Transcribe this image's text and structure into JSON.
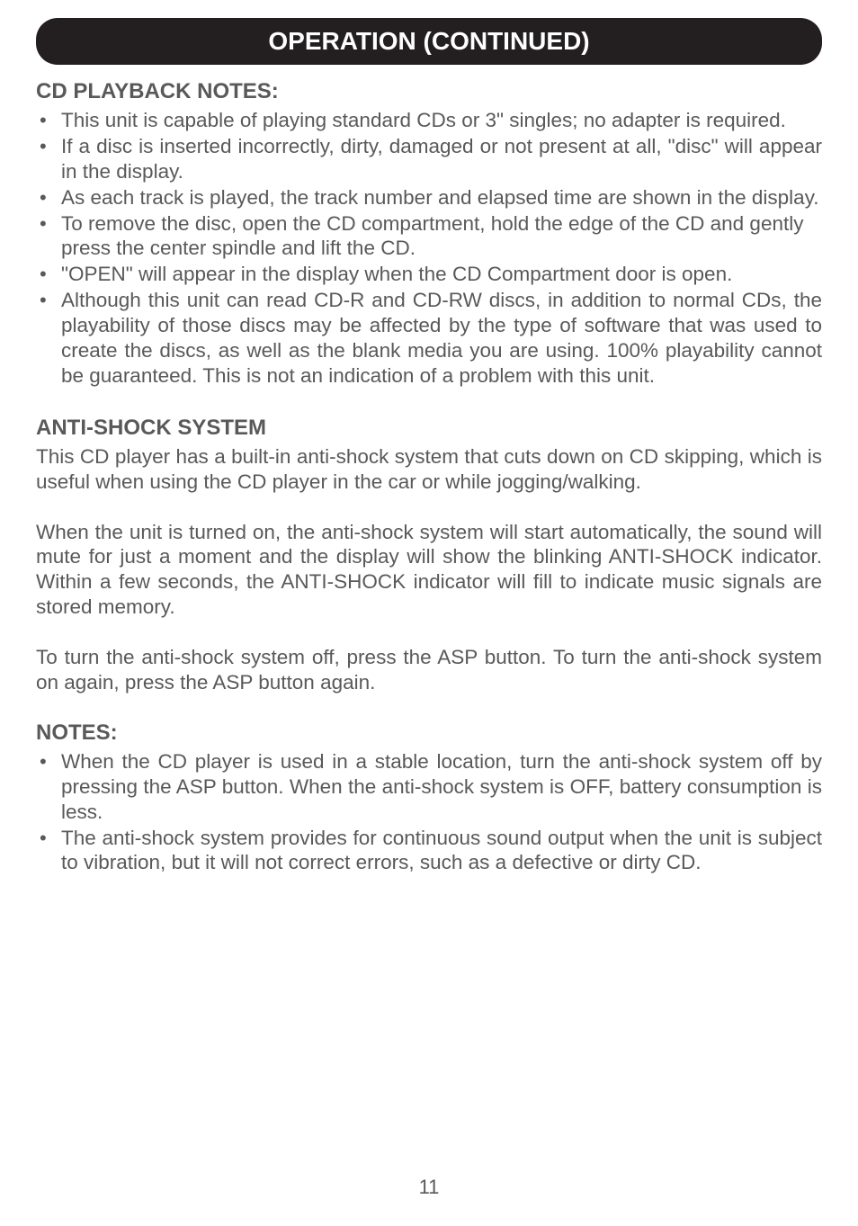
{
  "header": {
    "title": "OPERATION (CONTINUED)"
  },
  "section1": {
    "heading": "CD PLAYBACK NOTES:",
    "bullets": [
      "This unit is capable of playing standard CDs or 3\" singles; no adapter is required.",
      "If a disc is inserted incorrectly, dirty, damaged or not present at all, \"disc\" will appear in the display.",
      "As each track is played, the track number and elapsed time are shown in the display.",
      "To remove the disc, open the CD compartment, hold the edge of the CD and gently press the center spindle and lift the CD.",
      "\"OPEN\" will appear in the display when the CD Compartment door is open.",
      "Although this unit can read CD-R and CD-RW discs, in addition to normal CDs, the playability of those discs may be affected by the type of software that was used to create the discs, as well as the blank media you are using. 100% playability cannot be guaranteed. This is not an indication of a problem with this unit."
    ]
  },
  "section2": {
    "heading": "ANTI-SHOCK SYSTEM",
    "para1": "This CD player has a built-in anti-shock system that cuts down on CD skipping, which is useful when using the CD player in the car or while jogging/walking.",
    "para2": "When the unit is turned on, the anti-shock system will start automatically, the sound will mute for just a moment and the display will show the  blinking ANTI-SHOCK indicator. Within a few seconds, the ANTI-SHOCK indicator will fill to indicate music signals are stored memory.",
    "para3": "To turn the anti-shock system off, press the ASP button. To turn the anti-shock system on again, press the ASP button again."
  },
  "section3": {
    "heading": "NOTES:",
    "bullets": [
      "When the CD player is used in a stable location, turn the anti-shock system off by pressing the ASP button. When the anti-shock system is OFF, battery consumption is less.",
      "The anti-shock system provides for continuous sound output when the unit is subject to vibration, but it will not correct errors, such as a defective or dirty CD."
    ]
  },
  "pageNumber": "11",
  "colors": {
    "text": "#595959",
    "headerBg": "#231f20",
    "headerText": "#ffffff",
    "pageBg": "#ffffff"
  }
}
